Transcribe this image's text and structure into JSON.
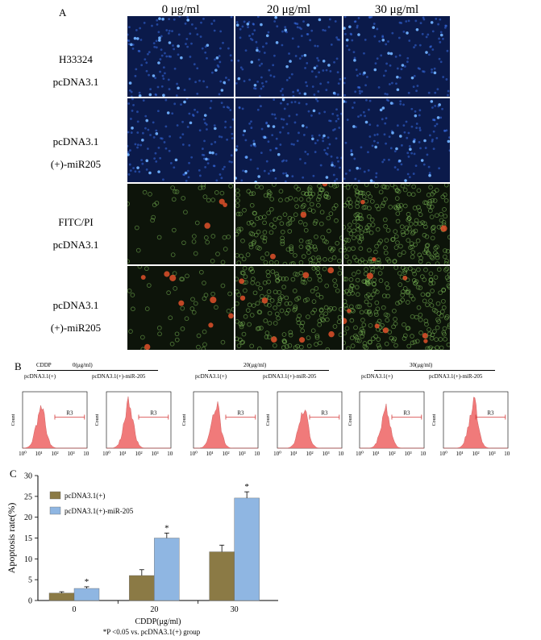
{
  "panel_a": {
    "letter": "A",
    "concentrations": [
      "0 μg/ml",
      "20 μg/ml",
      "30 μg/ml"
    ],
    "rows": [
      {
        "line1": "H33324",
        "line2": "pcDNA3.1",
        "stain": "blue"
      },
      {
        "line1": "pcDNA3.1",
        "line2": "(+)-miR205",
        "stain": "blue"
      },
      {
        "line1": "FITC/PI",
        "line2": "pcDNA3.1",
        "stain": "green"
      },
      {
        "line1": "pcDNA3.1",
        "line2": "(+)-miR205",
        "stain": "green"
      }
    ],
    "colors": {
      "blue_bg": "#0b1a4a",
      "blue_cell": "#3d7bff",
      "green_bg": "#0d140a",
      "green_cell": "#7fbf5a",
      "red_cell": "#e0502a"
    }
  },
  "panel_b": {
    "letter": "B",
    "cddp_label": "CDDP",
    "groups": [
      "0(μg/ml)",
      "20(μg/ml)",
      "30(μg/ml)"
    ],
    "subgroups": [
      "pcDNA3.1(+)",
      "pcDNA3.1(+)-miR-205"
    ],
    "histogram": {
      "ylabel": "Count",
      "gate": "R3",
      "xticks": [
        "10⁰",
        "10¹",
        "10²",
        "10³",
        "10⁴"
      ],
      "fill_color": "#f07a7a",
      "gate_color": "#d43838"
    }
  },
  "chart_data": {
    "type": "bar",
    "panel_letter": "C",
    "categories": [
      "0",
      "20",
      "30"
    ],
    "series": [
      {
        "name": "pcDNA3.1(+)",
        "values": [
          1.8,
          6.0,
          11.7
        ],
        "errors": [
          0.3,
          1.4,
          1.6
        ],
        "color": "#8b7a45"
      },
      {
        "name": "pcDNA3.1(+)-miR-205",
        "values": [
          2.9,
          15.0,
          24.6
        ],
        "errors": [
          0.4,
          1.2,
          1.5
        ],
        "color": "#8fb6e2"
      }
    ],
    "significance": [
      "*",
      "*",
      "*"
    ],
    "xlabel": "CDDP(μg/ml)",
    "ylabel": "Apoptosis rate(%)",
    "ylim": [
      0,
      30
    ],
    "yticks": [
      0,
      5,
      10,
      15,
      20,
      25,
      30
    ],
    "footnote": "*P <0.05 vs. pcDNA3.1(+) group",
    "legend_position": "top-left",
    "grid": false
  }
}
